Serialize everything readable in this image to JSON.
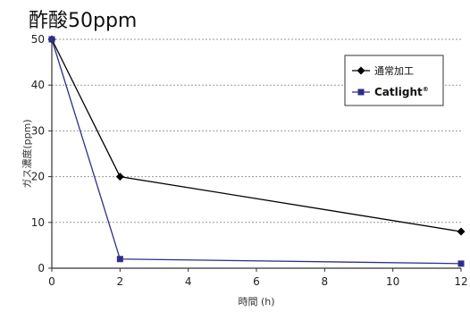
{
  "chart_data": {
    "type": "line",
    "title": "酢酸50ppm",
    "xlabel": "時間 (h)",
    "ylabel": "ガス濃度(ppm)",
    "xlim": [
      0,
      12
    ],
    "ylim": [
      0,
      50
    ],
    "xticks": [
      0,
      2,
      4,
      6,
      8,
      10,
      12
    ],
    "yticks": [
      0,
      10,
      20,
      30,
      40,
      50
    ],
    "grid": true,
    "legend_position": "top-right",
    "series": [
      {
        "name": "通常加工",
        "x": [
          0,
          2,
          12
        ],
        "values": [
          50,
          20,
          8
        ],
        "color": "#000000",
        "marker": "diamond"
      },
      {
        "name": "Catlight",
        "name_superscript": "®",
        "x": [
          0,
          2,
          12
        ],
        "values": [
          50,
          2,
          1
        ],
        "color": "#2e2e8a",
        "marker": "square"
      }
    ]
  }
}
